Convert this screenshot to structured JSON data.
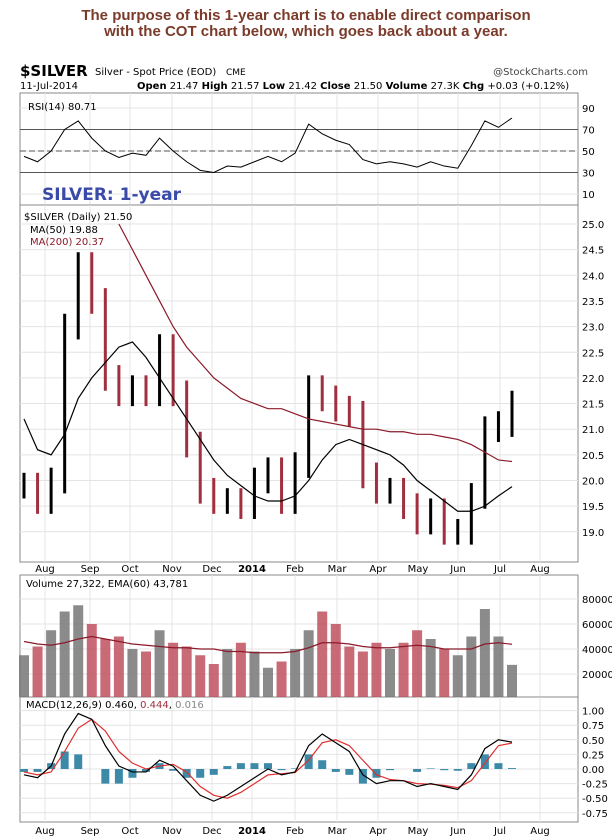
{
  "note": {
    "line1": "The purpose of this 1-year chart is to enable direct comparison",
    "line2": "with the COT chart below, which goes back about a year."
  },
  "header": {
    "symbol": "$SILVER",
    "name": "Silver - Spot Price (EOD)",
    "exchange": "CME",
    "source": "@StockCharts.com",
    "date": "11-Jul-2014",
    "open_label": "Open",
    "open": "21.47",
    "high_label": "High",
    "high": "21.57",
    "low_label": "Low",
    "low": "21.42",
    "close_label": "Close",
    "close": "21.50",
    "volume_label": "Volume",
    "volume": "27.3K",
    "chg_label": "Chg",
    "chg": "+0.03 (+0.12%)"
  },
  "annotation": "SILVER: 1-year",
  "colors": {
    "note": "#7b3b2a",
    "annotation": "#3a4aa8",
    "up": "#000000",
    "down": "#a0303f",
    "ma200": "#8b1a2a",
    "macd_hist": "#3c8aa8"
  },
  "chart_data": [
    {
      "type": "line",
      "legend": "RSI(14) 80.71",
      "ylim": [
        0,
        100
      ],
      "yticks": [
        10,
        30,
        50,
        70,
        90
      ],
      "values": [
        45,
        40,
        50,
        70,
        78,
        62,
        50,
        44,
        48,
        46,
        62,
        50,
        40,
        32,
        30,
        36,
        35,
        40,
        45,
        40,
        48,
        75,
        66,
        60,
        56,
        42,
        38,
        40,
        38,
        35,
        40,
        36,
        34,
        55,
        78,
        72,
        80.71
      ]
    },
    {
      "type": "candlestick",
      "legend": "$SILVER (Daily) 21.50",
      "ylim": [
        18.6,
        25.2
      ],
      "yticks": [
        "25.0",
        "24.5",
        "24.0",
        "23.5",
        "23.0",
        "22.5",
        "22.0",
        "21.5",
        "21.0",
        "20.5",
        "20.0",
        "19.5",
        "19.0"
      ],
      "xticks": [
        "Aug",
        "Sep",
        "Oct",
        "Nov",
        "Dec",
        "2014",
        "Feb",
        "Mar",
        "Apr",
        "May",
        "Jun",
        "Jul",
        "Aug"
      ],
      "close": [
        19.9,
        19.6,
        20.0,
        23.0,
        24.2,
        23.5,
        22.0,
        21.7,
        21.8,
        21.7,
        22.6,
        21.7,
        20.7,
        19.8,
        19.6,
        19.6,
        19.5,
        20.0,
        20.2,
        19.6,
        20.3,
        21.8,
        21.6,
        21.4,
        21.3,
        20.1,
        19.8,
        19.8,
        19.5,
        19.2,
        19.4,
        19.0,
        19.0,
        19.7,
        21.0,
        21.1,
        21.5
      ],
      "series": [
        {
          "name": "MA(50) 19.88",
          "values": [
            21.2,
            20.6,
            20.5,
            20.9,
            21.6,
            22.0,
            22.3,
            22.6,
            22.7,
            22.4,
            22.0,
            21.6,
            21.2,
            20.8,
            20.4,
            20.1,
            19.9,
            19.7,
            19.6,
            19.6,
            19.7,
            20.0,
            20.4,
            20.7,
            20.8,
            20.7,
            20.6,
            20.5,
            20.3,
            20.0,
            19.8,
            19.6,
            19.4,
            19.4,
            19.5,
            19.7,
            19.88
          ]
        },
        {
          "name": "MA(200) 20.37",
          "values": [
            null,
            null,
            null,
            null,
            null,
            null,
            null,
            25.0,
            24.5,
            24.0,
            23.5,
            23.0,
            22.6,
            22.3,
            22.0,
            21.8,
            21.6,
            21.5,
            21.4,
            21.4,
            21.3,
            21.2,
            21.15,
            21.1,
            21.05,
            21.0,
            21.0,
            20.95,
            20.95,
            20.9,
            20.9,
            20.85,
            20.8,
            20.7,
            20.55,
            20.4,
            20.37
          ]
        }
      ]
    },
    {
      "type": "bar",
      "legend": "Volume 27,322, EMA(60) 43,781",
      "ylim": [
        0,
        100000
      ],
      "yticks": [
        "80000",
        "60000",
        "40000",
        "20000"
      ],
      "values": [
        35000,
        42000,
        55000,
        70000,
        75000,
        60000,
        48000,
        50000,
        40000,
        38000,
        55000,
        45000,
        42000,
        35000,
        28000,
        40000,
        45000,
        38000,
        25000,
        30000,
        40000,
        55000,
        70000,
        60000,
        42000,
        38000,
        45000,
        40000,
        45000,
        55000,
        48000,
        40000,
        35000,
        50000,
        72000,
        50000,
        27322
      ],
      "ema": [
        46000,
        44000,
        43000,
        45000,
        48000,
        50000,
        48000,
        46000,
        44000,
        43000,
        42000,
        41000,
        41000,
        40000,
        40000,
        38000,
        38000,
        37000,
        37000,
        37000,
        38000,
        41000,
        45000,
        45000,
        44000,
        42000,
        41000,
        41000,
        42000,
        43000,
        42000,
        40000,
        40000,
        40000,
        44000,
        45000,
        43781
      ]
    },
    {
      "type": "line",
      "legend": "MACD(12,26,9)",
      "macd": "0.460",
      "signal": "0.444",
      "hist": "0.016",
      "ylim": [
        -0.85,
        1.1
      ],
      "yticks": [
        "1.00",
        "0.75",
        "0.50",
        "0.25",
        "0.00",
        "-0.25",
        "-0.50",
        "-0.75"
      ],
      "macd_values": [
        -0.1,
        -0.15,
        0.05,
        0.6,
        0.95,
        0.85,
        0.4,
        0.05,
        -0.05,
        -0.05,
        0.15,
        0.05,
        -0.2,
        -0.45,
        -0.55,
        -0.45,
        -0.3,
        -0.15,
        0.0,
        -0.1,
        -0.05,
        0.4,
        0.6,
        0.45,
        0.3,
        -0.1,
        -0.25,
        -0.2,
        -0.2,
        -0.3,
        -0.25,
        -0.3,
        -0.35,
        -0.1,
        0.35,
        0.5,
        0.46
      ],
      "signal_values": [
        -0.05,
        -0.1,
        -0.05,
        0.3,
        0.7,
        0.85,
        0.65,
        0.3,
        0.1,
        0.0,
        0.05,
        0.08,
        -0.05,
        -0.3,
        -0.45,
        -0.5,
        -0.4,
        -0.25,
        -0.1,
        -0.08,
        -0.06,
        0.15,
        0.45,
        0.5,
        0.4,
        0.15,
        -0.1,
        -0.18,
        -0.2,
        -0.25,
        -0.26,
        -0.28,
        -0.32,
        -0.2,
        0.1,
        0.4,
        0.444
      ]
    }
  ]
}
